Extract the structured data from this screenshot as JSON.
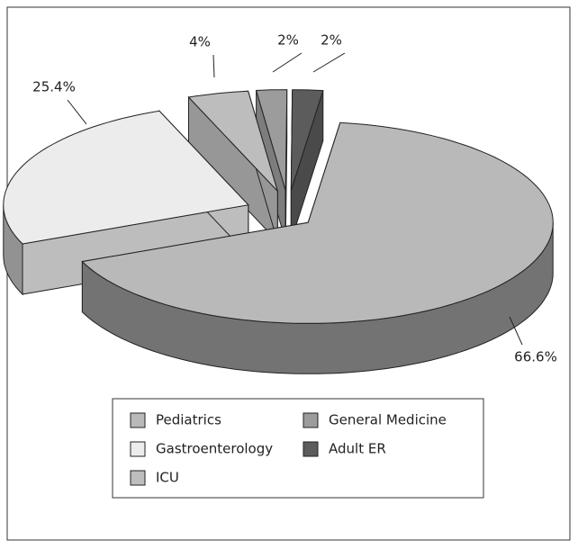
{
  "chart_data": {
    "type": "pie3d",
    "categories": [
      "Pediatrics",
      "Gastroenterology",
      "ICU",
      "General Medicine",
      "Adult ER"
    ],
    "values": [
      66.6,
      25.4,
      4,
      2,
      2
    ],
    "value_labels": [
      "66.6%",
      "25.4%",
      "4%",
      "2%",
      "2%"
    ],
    "colors": [
      "#b9b9b9",
      "#ececec",
      "#bdbdbd",
      "#9c9c9c",
      "#5c5c5c"
    ],
    "legend": "bottom"
  }
}
